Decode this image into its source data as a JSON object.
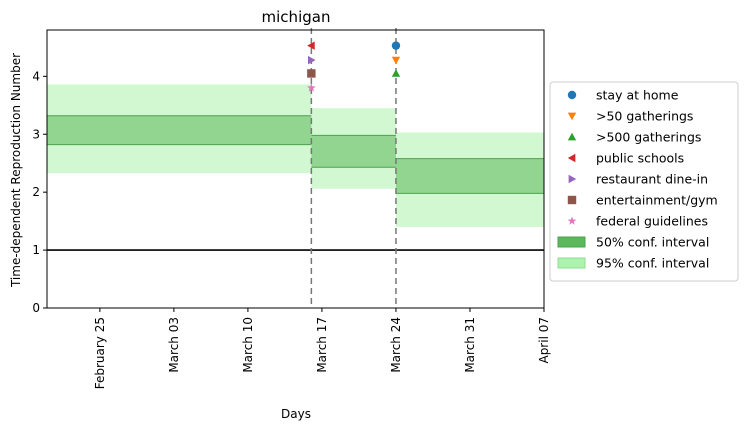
{
  "chart_data": {
    "type": "step-area",
    "title": "michigan",
    "xlabel": "Days",
    "ylabel": "Time-dependent Reproduction Number",
    "x_range": [
      "2020-02-20",
      "2020-04-07"
    ],
    "ylim": [
      0,
      4.8
    ],
    "x_ticks": [
      {
        "date": "2020-02-25",
        "label": "February 25"
      },
      {
        "date": "2020-03-03",
        "label": "March 03"
      },
      {
        "date": "2020-03-10",
        "label": "March 10"
      },
      {
        "date": "2020-03-17",
        "label": "March 17"
      },
      {
        "date": "2020-03-24",
        "label": "March 24"
      },
      {
        "date": "2020-03-31",
        "label": "March 31"
      },
      {
        "date": "2020-04-07",
        "label": "April 07"
      }
    ],
    "y_ticks": [
      "0",
      "1",
      "2",
      "3",
      "4"
    ],
    "grid": false,
    "legend_placement": "right-outside",
    "reference_line": 1,
    "intervention_dates": [
      "2020-03-16",
      "2020-03-24"
    ],
    "segments": [
      {
        "start": "2020-02-20",
        "end": "2020-03-16",
        "ci50": [
          2.82,
          3.32
        ],
        "ci95": [
          2.33,
          3.86
        ]
      },
      {
        "start": "2020-03-16",
        "end": "2020-03-24",
        "ci50": [
          2.43,
          2.98
        ],
        "ci95": [
          2.06,
          3.45
        ]
      },
      {
        "start": "2020-03-24",
        "end": "2020-04-07",
        "ci50": [
          1.98,
          2.58
        ],
        "ci95": [
          1.4,
          3.03
        ]
      }
    ],
    "interventions": [
      {
        "name": "stay at home",
        "date": "2020-03-24",
        "y": 4.53,
        "marker": "circle",
        "color": "#1f77b4"
      },
      {
        "name": ">50 gatherings",
        "date": "2020-03-24",
        "y": 4.28,
        "marker": "triangle-down",
        "color": "#ff7f0e"
      },
      {
        "name": ">500 gatherings",
        "date": "2020-03-24",
        "y": 4.05,
        "marker": "triangle-up",
        "color": "#2ca02c"
      },
      {
        "name": "public schools",
        "date": "2020-03-16",
        "y": 4.53,
        "marker": "triangle-left",
        "color": "#d62728"
      },
      {
        "name": "restaurant dine-in",
        "date": "2020-03-16",
        "y": 4.28,
        "marker": "triangle-right",
        "color": "#9467bd"
      },
      {
        "name": "entertainment/gym",
        "date": "2020-03-16",
        "y": 4.05,
        "marker": "square",
        "color": "#8c564b"
      },
      {
        "name": "federal guidelines",
        "date": "2020-03-16",
        "y": 3.8,
        "marker": "star",
        "color": "#e377c2"
      }
    ],
    "ci_legend": [
      {
        "name": "50% conf. interval",
        "color": "#5bb85b"
      },
      {
        "name": "95% conf. interval",
        "color": "#adf2ad"
      }
    ]
  }
}
